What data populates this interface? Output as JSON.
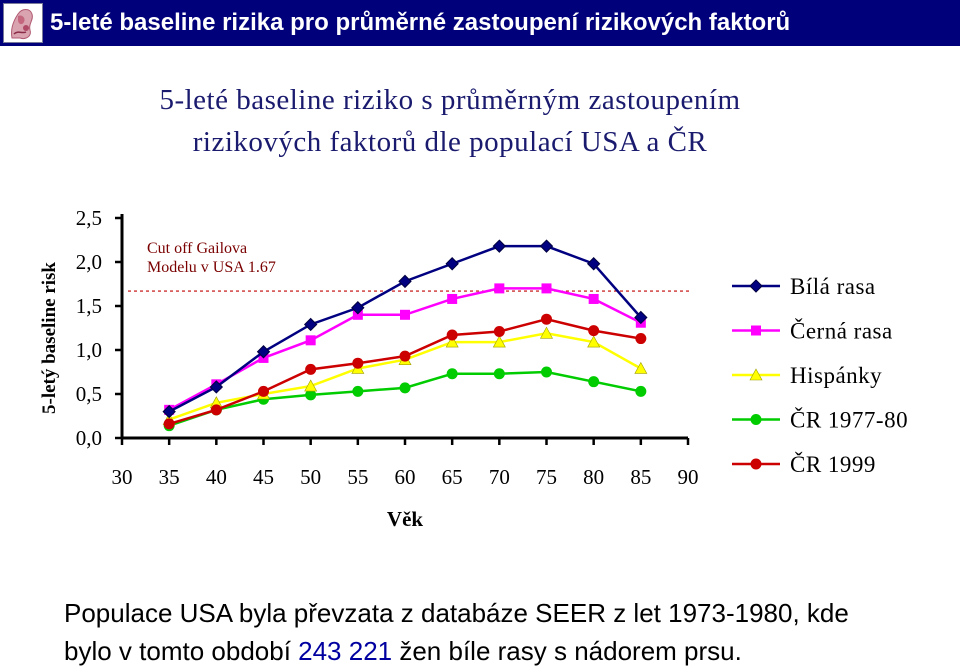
{
  "header": {
    "title": "5-leté baseline rizika pro průměrné zastoupení rizikových faktorů"
  },
  "chart_data": {
    "type": "line",
    "title_line1": "5-leté baseline riziko s průměrným zastoupením",
    "title_line2": "rizikových faktorů dle populací  USA  a  ČR",
    "xlabel": "Věk",
    "ylabel": "5-letý baseline risk",
    "x_ticks": [
      "30",
      "35",
      "40",
      "45",
      "50",
      "55",
      "60",
      "65",
      "70",
      "75",
      "80",
      "85",
      "90"
    ],
    "y_ticks": [
      "0,0",
      "0,5",
      "1,0",
      "1,5",
      "2,0",
      "2,5"
    ],
    "xlim": [
      30,
      90
    ],
    "ylim": [
      0,
      2.5
    ],
    "grid": false,
    "legend_position": "right",
    "cutoff": {
      "value": 1.67,
      "label_line1": "Cut off Gailova",
      "label_line2": "Modelu v USA 1.67",
      "color": "#c00000"
    },
    "x": [
      35,
      40,
      45,
      50,
      55,
      60,
      65,
      70,
      75,
      80,
      85
    ],
    "series": [
      {
        "name": "Bílá rasa",
        "color": "#000080",
        "marker": "diamond",
        "values": [
          0.3,
          0.58,
          0.98,
          1.29,
          1.48,
          1.78,
          1.98,
          2.18,
          2.18,
          1.98,
          1.37
        ]
      },
      {
        "name": "Černá rasa",
        "color": "#ff00ff",
        "marker": "square",
        "values": [
          0.32,
          0.61,
          0.91,
          1.11,
          1.4,
          1.4,
          1.58,
          1.7,
          1.7,
          1.58,
          1.31
        ]
      },
      {
        "name": "Hispánky",
        "color": "#ffff00",
        "marker": "triangle",
        "values": [
          0.21,
          0.4,
          0.5,
          0.59,
          0.79,
          0.89,
          1.09,
          1.09,
          1.19,
          1.09,
          0.79
        ]
      },
      {
        "name": "ČR 1977-80",
        "color": "#00cc00",
        "marker": "circle",
        "values": [
          0.14,
          0.32,
          0.44,
          0.49,
          0.53,
          0.57,
          0.73,
          0.73,
          0.75,
          0.64,
          0.53
        ]
      },
      {
        "name": "ČR 1999",
        "color": "#cc0000",
        "marker": "circle",
        "values": [
          0.16,
          0.32,
          0.53,
          0.78,
          0.85,
          0.93,
          1.17,
          1.21,
          1.35,
          1.22,
          1.13
        ]
      }
    ]
  },
  "footer": {
    "line1": "Populace USA byla převzata z databáze SEER z let 1973-1980, kde",
    "line2_before": "bylo v tomto období ",
    "line2_number": "243 221",
    "line2_after": " žen bíle rasy s nádorem prsu."
  }
}
